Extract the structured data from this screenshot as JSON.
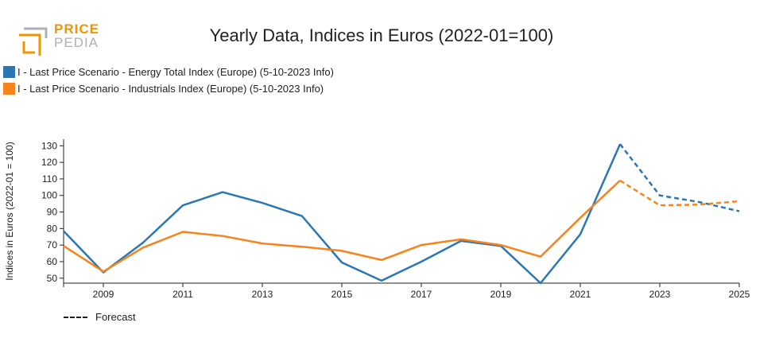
{
  "logo": {
    "line1": "PRICE",
    "line2": "PEDIA"
  },
  "chart_data": {
    "type": "line",
    "title": "Yearly Data, Indices in Euros (2022-01=100)",
    "xlabel": "",
    "ylabel": "Indices in Euros (2022-01 = 100)",
    "xlim": [
      2008,
      2025
    ],
    "ylim": [
      47,
      134
    ],
    "x_ticks": [
      2009,
      2011,
      2013,
      2015,
      2017,
      2019,
      2021,
      2023,
      2025
    ],
    "y_ticks": [
      50,
      60,
      70,
      80,
      90,
      100,
      110,
      120,
      130
    ],
    "forecast_from": 2022,
    "series": [
      {
        "name": "I - Last Price Scenario - Energy Total Index (Europe) (5-10-2023 Info)",
        "color": "#2a77b4",
        "x": [
          2008,
          2009,
          2010,
          2011,
          2012,
          2013,
          2014,
          2015,
          2016,
          2017,
          2018,
          2019,
          2020,
          2021,
          2022,
          2023,
          2024,
          2025
        ],
        "values": [
          78.5,
          53.5,
          71.5,
          94,
          102,
          95.5,
          87.5,
          59.5,
          48.5,
          60,
          72.5,
          69.5,
          47,
          76.5,
          131,
          100,
          96,
          90.5
        ]
      },
      {
        "name": "I - Last Price Scenario - Industrials Index (Europe) (5-10-2023 Info)",
        "color": "#f7831c",
        "x": [
          2008,
          2009,
          2010,
          2011,
          2012,
          2013,
          2014,
          2015,
          2016,
          2017,
          2018,
          2019,
          2020,
          2021,
          2022,
          2023,
          2024,
          2025
        ],
        "values": [
          69.5,
          54,
          68.5,
          78,
          75.5,
          71,
          69,
          66.5,
          61,
          70,
          73.5,
          70,
          63,
          86.5,
          109,
          94,
          94.5,
          96.5
        ]
      }
    ]
  },
  "forecast_label": "Forecast"
}
